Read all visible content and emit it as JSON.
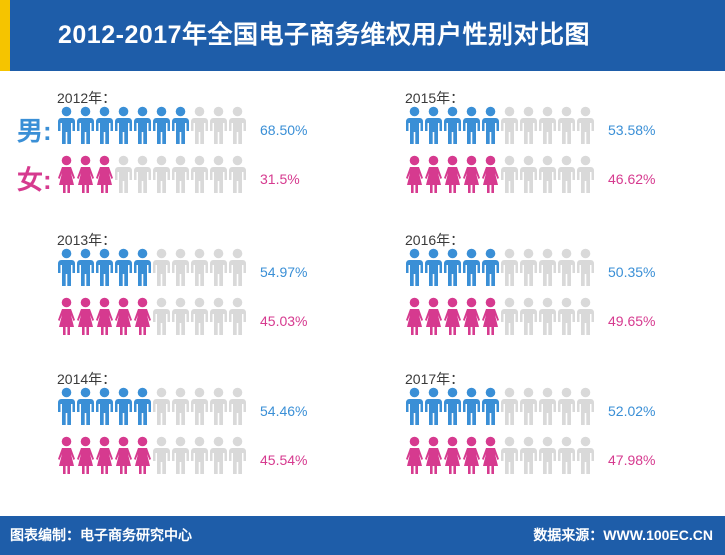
{
  "title": "2012-2017年全国电子商务维权用户性别对比图",
  "legend": {
    "male": "男:",
    "female": "女:"
  },
  "footer": {
    "left": "图表编制：电子商务研究中心",
    "right": "数据来源：WWW.100EC.CN"
  },
  "colors": {
    "male": "#3a8fd6",
    "female": "#d63a8f",
    "empty": "#d9d9d9",
    "header": "#1e5da9",
    "accent": "#f5c400"
  },
  "chart_data": {
    "type": "pictograph",
    "icons_per_row": 10,
    "panels": [
      {
        "year_label": "2012年：",
        "male": 68.5,
        "male_label": "68.50%",
        "female": 31.5,
        "female_label": "31.5%"
      },
      {
        "year_label": "2013年：",
        "male": 54.97,
        "male_label": "54.97%",
        "female": 45.03,
        "female_label": "45.03%"
      },
      {
        "year_label": "2014年：",
        "male": 54.46,
        "male_label": "54.46%",
        "female": 45.54,
        "female_label": "45.54%"
      },
      {
        "year_label": "2015年：",
        "male": 53.58,
        "male_label": "53.58%",
        "female": 46.62,
        "female_label": "46.62%"
      },
      {
        "year_label": "2016年：",
        "male": 50.35,
        "male_label": "50.35%",
        "female": 49.65,
        "female_label": "49.65%"
      },
      {
        "year_label": "2017年：",
        "male": 52.02,
        "male_label": "52.02%",
        "female": 47.98,
        "female_label": "47.98%"
      }
    ]
  }
}
